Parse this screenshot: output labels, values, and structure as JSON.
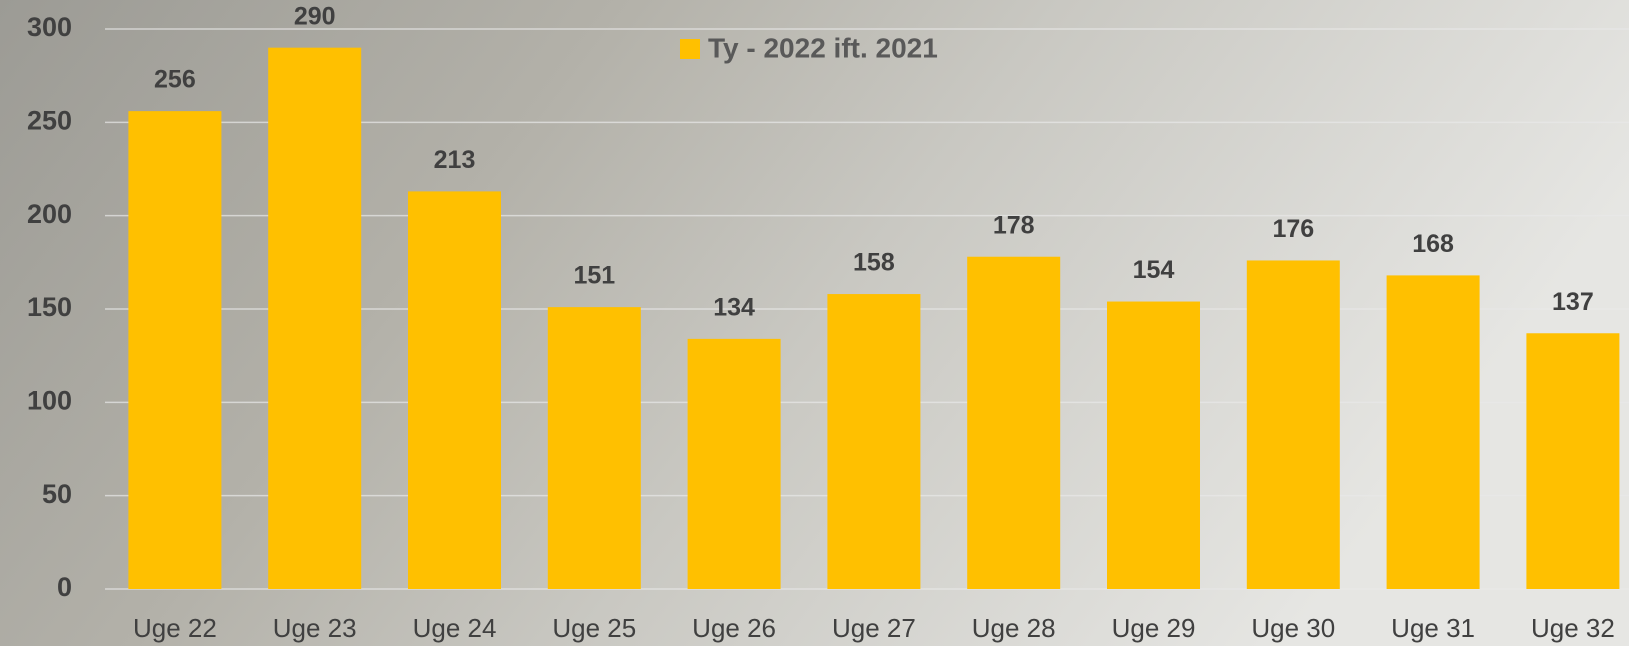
{
  "chart_data": {
    "type": "bar",
    "categories": [
      "Uge 22",
      "Uge 23",
      "Uge 24",
      "Uge 25",
      "Uge 26",
      "Uge 27",
      "Uge 28",
      "Uge 29",
      "Uge 30",
      "Uge 31",
      "Uge 32"
    ],
    "series": [
      {
        "name": "Ty - 2022 ift. 2021",
        "color": "#ffc000",
        "values": [
          256,
          290,
          213,
          151,
          134,
          158,
          178,
          154,
          176,
          168,
          137
        ]
      }
    ],
    "ylim": [
      0,
      300
    ],
    "yticks": [
      0,
      50,
      100,
      150,
      200,
      250,
      300
    ],
    "grid": true,
    "legend": "top"
  }
}
